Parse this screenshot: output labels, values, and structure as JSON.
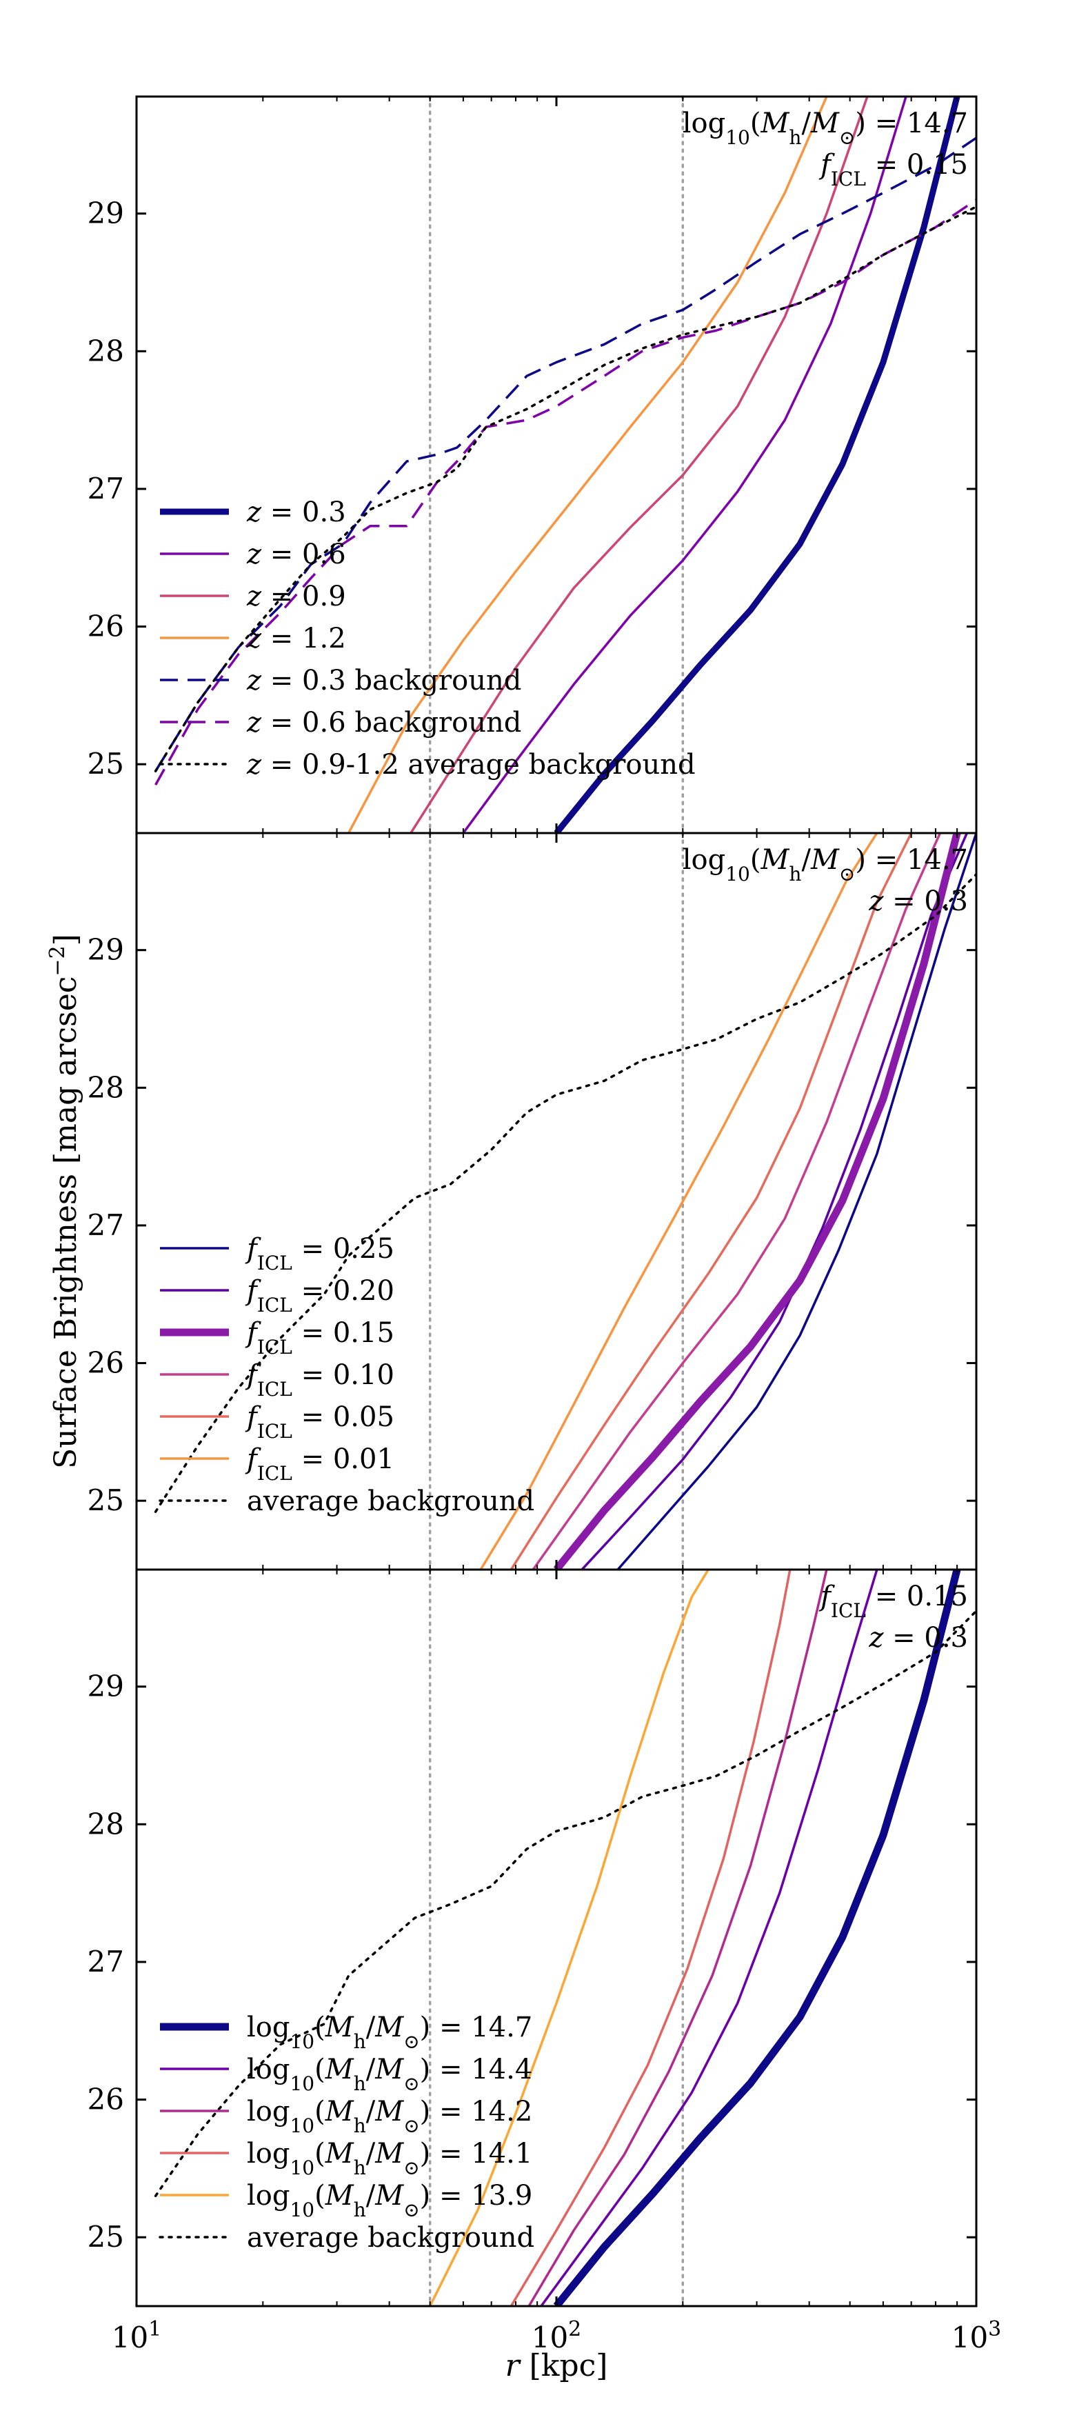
{
  "chart_data": {
    "type": "line",
    "figure": {
      "ylabel": "Surface Brightness [mag arcsec^-2]",
      "xlabel": "r [kpc]",
      "xscale": "log",
      "xlim": [
        10,
        1000
      ],
      "ylim": [
        29.85,
        24.5
      ],
      "x_tick_labels": [
        "10^1",
        "10^2",
        "10^3"
      ],
      "y_tick_labels": [
        "25",
        "26",
        "27",
        "28",
        "29"
      ],
      "vlines": [
        50,
        200
      ]
    },
    "panels": [
      {
        "id": "top",
        "annotation": [
          "log10(Mh/M⊙) = 14.7",
          "fICL = 0.15"
        ],
        "series": [
          {
            "name": "z = 0.3",
            "color": "#0d0887",
            "width": 9,
            "dash": "solid",
            "x": [
              100,
              130,
              170,
              220,
              290,
              380,
              480,
              600,
              750,
              900
            ],
            "y": [
              24.5,
              24.93,
              25.32,
              25.72,
              26.12,
              26.6,
              27.18,
              27.92,
              28.9,
              29.85
            ]
          },
          {
            "name": "z = 0.6",
            "color": "#7e03a8",
            "width": 3.5,
            "dash": "solid",
            "x": [
              60,
              80,
              110,
              150,
              200,
              270,
              350,
              450,
              560,
              680
            ],
            "y": [
              24.5,
              25.02,
              25.58,
              26.08,
              26.48,
              26.98,
              27.5,
              28.2,
              29.0,
              29.85
            ]
          },
          {
            "name": "z = 0.9",
            "color": "#cc4778",
            "width": 3.5,
            "dash": "solid",
            "x": [
              45,
              60,
              80,
              110,
              150,
              200,
              270,
              350,
              440,
              550
            ],
            "y": [
              24.5,
              25.1,
              25.7,
              26.28,
              26.72,
              27.1,
              27.6,
              28.25,
              29.0,
              29.85
            ]
          },
          {
            "name": "z = 1.2",
            "color": "#f89540",
            "width": 3.5,
            "dash": "solid",
            "x": [
              32,
              45,
              60,
              80,
              110,
              150,
              200,
              270,
              350,
              440
            ],
            "y": [
              24.5,
              25.35,
              25.9,
              26.4,
              26.93,
              27.45,
              27.92,
              28.5,
              29.15,
              29.85
            ]
          },
          {
            "name": "z = 0.3 background",
            "color": "#0d0887",
            "width": 3.5,
            "dash": "26,14",
            "x": [
              11.1,
              14,
              17.5,
              22,
              26,
              31,
              36,
              44,
              52,
              58,
              68,
              85,
              100,
              130,
              160,
              200,
              240,
              300,
              380,
              480,
              600,
              800,
              1000
            ],
            "y": [
              24.95,
              25.45,
              25.85,
              26.15,
              26.45,
              26.6,
              26.9,
              27.2,
              27.25,
              27.3,
              27.5,
              27.82,
              27.92,
              28.05,
              28.2,
              28.3,
              28.45,
              28.65,
              28.85,
              29.0,
              29.15,
              29.35,
              29.55
            ]
          },
          {
            "name": "z = 0.6 background",
            "color": "#7e03a8",
            "width": 3.5,
            "dash": "26,14",
            "x": [
              11.1,
              14,
              17.5,
              22,
              26,
              31,
              36,
              44,
              52,
              58,
              68,
              85,
              100,
              130,
              160,
              200,
              240,
              300,
              380,
              480,
              600,
              800,
              1000
            ],
            "y": [
              24.85,
              25.4,
              25.8,
              26.1,
              26.35,
              26.6,
              26.73,
              26.73,
              27.05,
              27.2,
              27.45,
              27.5,
              27.6,
              27.82,
              28.0,
              28.1,
              28.15,
              28.25,
              28.35,
              28.5,
              28.7,
              28.9,
              29.1
            ]
          },
          {
            "name": "z = 0.9-1.2 average background",
            "color": "#000000",
            "width": 3.5,
            "dash": "4,9",
            "x": [
              11.1,
              14,
              17.5,
              22,
              26,
              31,
              36,
              44,
              52,
              58,
              68,
              85,
              100,
              130,
              160,
              200,
              240,
              300,
              380,
              480,
              600,
              800,
              1000
            ],
            "y": [
              24.95,
              25.45,
              25.85,
              26.2,
              26.45,
              26.65,
              26.85,
              26.97,
              27.05,
              27.15,
              27.45,
              27.58,
              27.7,
              27.9,
              28.02,
              28.12,
              28.18,
              28.25,
              28.35,
              28.52,
              28.7,
              28.9,
              29.05
            ]
          }
        ]
      },
      {
        "id": "middle",
        "annotation": [
          "log10(Mh/M⊙) = 14.7",
          "z = 0.3"
        ],
        "series": [
          {
            "name": "fICL = 0.25",
            "color": "#0d0887",
            "width": 3.5,
            "dash": "solid",
            "x": [
              140,
              180,
              230,
              300,
              380,
              470,
              580,
              700,
              840,
              1000
            ],
            "y": [
              24.5,
              24.88,
              25.25,
              25.68,
              26.2,
              26.82,
              27.52,
              28.35,
              29.15,
              29.85
            ]
          },
          {
            "name": "fICL = 0.20",
            "color": "#5c01a6",
            "width": 3.5,
            "dash": "solid",
            "x": [
              115,
              150,
              200,
              260,
              340,
              430,
              530,
              650,
              780,
              950
            ],
            "y": [
              24.5,
              24.88,
              25.3,
              25.75,
              26.3,
              26.98,
              27.7,
              28.5,
              29.25,
              29.85
            ]
          },
          {
            "name": "fICL = 0.15",
            "color": "#8a1ba8",
            "width": 11,
            "dash": "solid",
            "x": [
              100,
              130,
              170,
              220,
              290,
              380,
              480,
              600,
              750,
              900
            ],
            "y": [
              24.5,
              24.93,
              25.32,
              25.72,
              26.12,
              26.6,
              27.18,
              27.92,
              28.9,
              29.85
            ]
          },
          {
            "name": "fICL = 0.10",
            "color": "#c43e8f",
            "width": 3.5,
            "dash": "solid",
            "x": [
              88,
              115,
              150,
              200,
              270,
              350,
              440,
              550,
              680,
              820
            ],
            "y": [
              24.5,
              25.0,
              25.5,
              26.0,
              26.5,
              27.05,
              27.75,
              28.55,
              29.3,
              29.85
            ]
          },
          {
            "name": "fICL = 0.05",
            "color": "#e56b5d",
            "width": 3.5,
            "dash": "solid",
            "x": [
              78,
              100,
              130,
              170,
              230,
              300,
              380,
              470,
              580,
              700
            ],
            "y": [
              24.5,
              25.02,
              25.55,
              26.08,
              26.65,
              27.2,
              27.85,
              28.6,
              29.35,
              29.85
            ]
          },
          {
            "name": "fICL = 0.01",
            "color": "#f89540",
            "width": 3.5,
            "dash": "solid",
            "x": [
              66,
              85,
              110,
              145,
              190,
              250,
              320,
              400,
              490,
              580
            ],
            "y": [
              24.5,
              25.05,
              25.7,
              26.4,
              27.05,
              27.72,
              28.35,
              28.95,
              29.5,
              29.85
            ]
          },
          {
            "name": "average background",
            "color": "#000000",
            "width": 3.5,
            "dash": "4,9",
            "x": [
              11.1,
              14,
              17.5,
              22,
              28,
              32,
              38,
              46,
              56,
              70,
              85,
              100,
              130,
              160,
              200,
              240,
              300,
              380,
              480,
              600,
              800,
              1000
            ],
            "y": [
              24.92,
              25.4,
              25.82,
              26.18,
              26.5,
              26.78,
              26.98,
              27.2,
              27.3,
              27.55,
              27.82,
              27.95,
              28.05,
              28.2,
              28.28,
              28.35,
              28.5,
              28.62,
              28.8,
              28.98,
              29.25,
              29.55
            ]
          }
        ]
      },
      {
        "id": "bottom",
        "annotation": [
          "fICL = 0.15",
          "z = 0.3"
        ],
        "series": [
          {
            "name": "log10(Mh/M⊙) = 14.7",
            "color": "#0d0887",
            "width": 11,
            "dash": "solid",
            "x": [
              100,
              130,
              170,
              220,
              290,
              380,
              480,
              600,
              750,
              900
            ],
            "y": [
              24.5,
              24.93,
              25.32,
              25.72,
              26.12,
              26.6,
              27.18,
              27.92,
              28.9,
              29.85
            ]
          },
          {
            "name": "log10(Mh/M⊙) = 14.4",
            "color": "#6a00a8",
            "width": 3.5,
            "dash": "solid",
            "x": [
              92,
              120,
              160,
              210,
              270,
              340,
              420,
              500,
              580
            ],
            "y": [
              24.5,
              24.98,
              25.5,
              26.05,
              26.7,
              27.5,
              28.4,
              29.2,
              29.85
            ]
          },
          {
            "name": "log10(Mh/M⊙) = 14.2",
            "color": "#b12a90",
            "width": 3.5,
            "dash": "solid",
            "x": [
              86,
              110,
              145,
              185,
              235,
              290,
              350,
              410,
              440
            ],
            "y": [
              24.5,
              25.05,
              25.6,
              26.2,
              26.9,
              27.7,
              28.6,
              29.45,
              29.85
            ]
          },
          {
            "name": "log10(Mh/M⊙) = 14.1",
            "color": "#e16462",
            "width": 3.5,
            "dash": "solid",
            "x": [
              78,
              100,
              130,
              165,
              205,
              250,
              295,
              340,
              360
            ],
            "y": [
              24.5,
              25.05,
              25.65,
              26.25,
              26.95,
              27.75,
              28.6,
              29.45,
              29.85
            ]
          },
          {
            "name": "log10(Mh/M⊙) = 13.9",
            "color": "#fca636",
            "width": 3.5,
            "dash": "solid",
            "x": [
              50,
              65,
              80,
              100,
              125,
              150,
              180,
              210,
              230
            ],
            "y": [
              24.5,
              25.2,
              25.9,
              26.7,
              27.55,
              28.35,
              29.1,
              29.65,
              29.85
            ]
          },
          {
            "name": "average background",
            "color": "#000000",
            "width": 3.5,
            "dash": "4,9",
            "x": [
              11.1,
              14,
              17.5,
              22,
              28,
              32,
              38,
              46,
              56,
              70,
              85,
              100,
              130,
              160,
              200,
              240,
              300,
              380,
              480,
              600,
              800,
              1000
            ],
            "y": [
              25.3,
              25.75,
              26.1,
              26.4,
              26.55,
              26.9,
              27.1,
              27.32,
              27.42,
              27.55,
              27.82,
              27.95,
              28.05,
              28.2,
              28.28,
              28.35,
              28.5,
              28.68,
              28.85,
              29.02,
              29.25,
              29.55
            ]
          }
        ]
      }
    ]
  }
}
